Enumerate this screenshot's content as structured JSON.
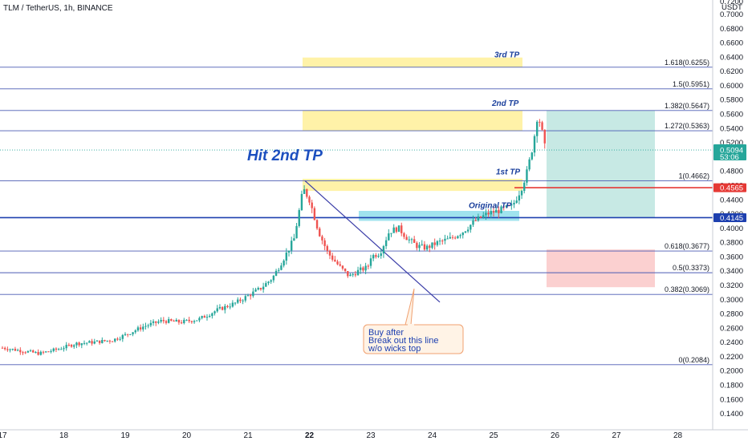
{
  "header": {
    "symbol_title": "TLM / TetherUS, 1h, BINANCE"
  },
  "chart_data": {
    "type": "candlestick",
    "title": "TLM / TetherUS, 1h, BINANCE",
    "y_axis": {
      "currency_label": "USDT",
      "top_partial_tick": "0.7200",
      "ticks": [
        "0.7000",
        "0.6800",
        "0.6600",
        "0.6400",
        "0.6200",
        "0.6000",
        "0.5800",
        "0.5600",
        "0.5400",
        "0.5200",
        "0.5000",
        "0.4800",
        "0.4600",
        "0.4400",
        "0.4200",
        "0.4000",
        "0.3800",
        "0.3600",
        "0.3400",
        "0.3200",
        "0.3000",
        "0.2800",
        "0.2600",
        "0.2400",
        "0.2200",
        "0.2000",
        "0.1800",
        "0.1600",
        "0.1400"
      ],
      "range": [
        0.125,
        0.72
      ]
    },
    "x_axis": {
      "ticks": [
        "17",
        "18",
        "19",
        "20",
        "21",
        "22",
        "23",
        "24",
        "25",
        "26",
        "27",
        "28"
      ],
      "bold_tick": "22",
      "range_days": [
        16.9,
        28.55
      ]
    },
    "candles_summary": {
      "start": {
        "day": 17.0,
        "price": 0.232
      },
      "low": {
        "day": 17.5,
        "price": 0.223
      },
      "peak_before_pullback": {
        "day": 21.9,
        "price": 0.4662
      },
      "pullback_low": {
        "day": 22.6,
        "price": 0.33
      },
      "peak": {
        "day": 25.7,
        "price": 0.5647
      },
      "last": {
        "day": 25.85,
        "price": 0.5094
      }
    },
    "fib_levels": [
      {
        "label": "1.618(0.6255)",
        "value": 0.6255
      },
      {
        "label": "1.5(0.5951)",
        "value": 0.5951
      },
      {
        "label": "1.382(0.5647)",
        "value": 0.5647
      },
      {
        "label": "1.272(0.5363)",
        "value": 0.5363
      },
      {
        "label": "1(0.4662)",
        "value": 0.4662
      },
      {
        "label": "0.618(0.3677)",
        "value": 0.3677
      },
      {
        "label": "0.5(0.3373)",
        "value": 0.3373
      },
      {
        "label": "0.382(0.3069)",
        "value": 0.3069
      },
      {
        "label": "0(0.2084)",
        "value": 0.2084
      }
    ],
    "tp_labels": [
      "3rd TP",
      "2nd TP",
      "1st TP",
      "Original TP"
    ],
    "annotation_text": "Hit 2nd TP",
    "callout_lines": [
      "Buy after",
      "Break out this line",
      "w/o wicks top"
    ],
    "price_tags": [
      {
        "value": "0.5094",
        "sub": "53:06",
        "color": "#26a69a"
      },
      {
        "value": "0.4565",
        "color": "#e53935"
      },
      {
        "value": "0.4145",
        "color": "#1e40af"
      }
    ],
    "horizontal_lines": [
      {
        "value": 0.4565,
        "color": "#e53935"
      },
      {
        "value": 0.4145,
        "color": "#1e40af"
      }
    ],
    "position_tool": {
      "entry": 0.4145,
      "take_profit": 0.6255,
      "stop_loss": 0.3677
    },
    "colors": {
      "up": "#26a69a",
      "down": "#ef5350",
      "fib": "#4b5bb3",
      "zone_yellow": "#fff2a8",
      "zone_cyan": "#9fe3ee",
      "profit": "#c7e9e4",
      "loss": "#fbd0d0"
    }
  }
}
